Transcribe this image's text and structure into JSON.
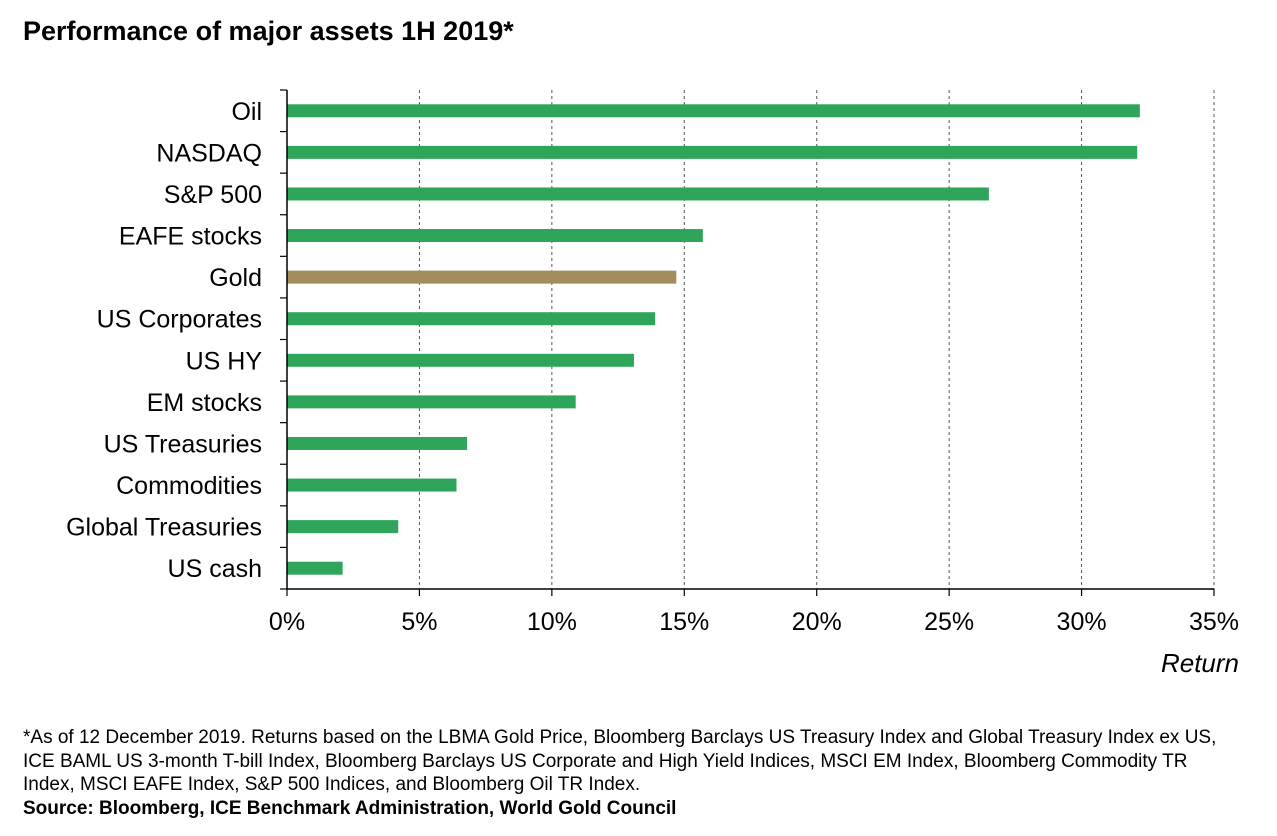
{
  "chart_data": {
    "type": "bar",
    "orientation": "horizontal",
    "title": "Performance of major assets 1H 2019*",
    "categories": [
      "Oil",
      "NASDAQ",
      "S&P 500",
      "EAFE stocks",
      "Gold",
      "US Corporates",
      "US HY",
      "EM stocks",
      "US Treasuries",
      "Commodities",
      "Global Treasuries",
      "US cash"
    ],
    "values": [
      32.2,
      32.1,
      26.5,
      15.7,
      14.7,
      13.9,
      13.1,
      10.9,
      6.8,
      6.4,
      4.2,
      2.1
    ],
    "highlight_category": "Gold",
    "xlim": [
      0,
      35
    ],
    "xticks": [
      0,
      5,
      10,
      15,
      20,
      25,
      30,
      35
    ],
    "xtick_labels": [
      "0%",
      "5%",
      "10%",
      "15%",
      "20%",
      "25%",
      "30%",
      "35%"
    ],
    "xlabel": "Return",
    "ylabel": "",
    "grid": "vertical dashed",
    "colors": {
      "default": "#2ea55a",
      "highlight": "#a28d5b"
    }
  },
  "footnote": "*As of 12 December 2019. Returns based on the LBMA Gold Price, Bloomberg Barclays US Treasury Index and Global Treasury Index ex US, ICE BAML US 3-month T-bill Index, Bloomberg Barclays US Corporate and High Yield Indices, MSCI EM Index, Bloomberg Commodity TR Index, MSCI EAFE Index, S&P 500 Indices, and Bloomberg Oil TR Index.",
  "source": "Source: Bloomberg, ICE Benchmark Administration, World Gold Council"
}
